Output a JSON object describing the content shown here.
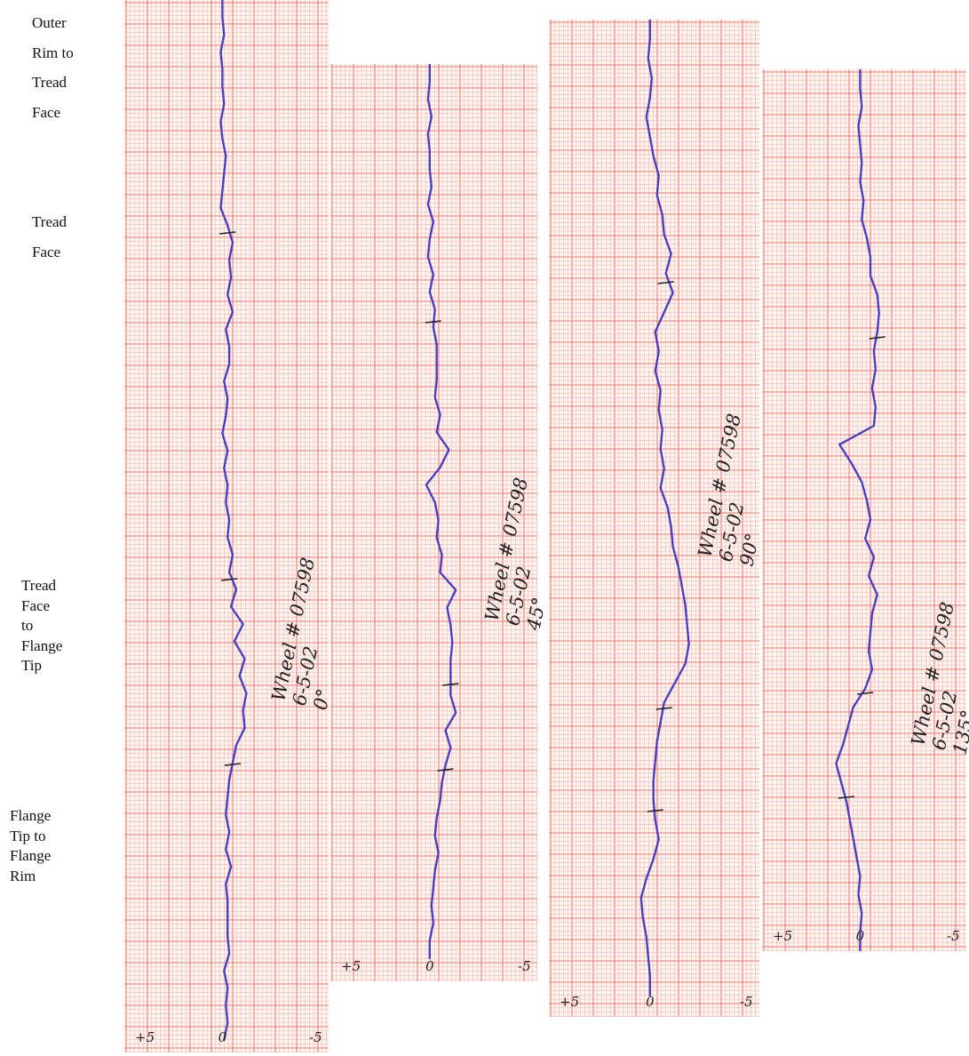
{
  "side_labels": [
    "Outer\nRim to\nTread\nFace",
    "Tread\nFace",
    "Tread\nFace\nto\nFlange\nTip",
    "Flange\nTip to\nFlange\nRim"
  ],
  "colors": {
    "paper": "#fff6f3",
    "grid_minor": "#f7b6ac",
    "grid_major": "#ea7a6e",
    "trace": "#4a3fc0",
    "ink": "#222222"
  },
  "chart_data": [
    {
      "type": "line",
      "annotation": [
        "Wheel # 07598",
        "6-5-02",
        "0°"
      ],
      "x_ticks": [
        "+5",
        "0",
        "-5"
      ],
      "xlim": [
        5,
        -5
      ],
      "series": [
        {
          "values": [
            0,
            0,
            -0.1,
            0.1,
            0,
            0,
            -0.1,
            0.1,
            0,
            -0.2,
            -0.1,
            0,
            0.1,
            -0.3,
            -0.6,
            -0.4,
            -0.5,
            -0.3,
            -0.6,
            -0.2,
            -0.4,
            -0.4,
            -0.1,
            -0.3,
            -0.2,
            0,
            -0.3,
            -0.1,
            -0.3,
            -0.2,
            -0.4,
            -0.3,
            -0.6,
            -0.4,
            -0.8,
            -0.5,
            -1.2,
            -0.7,
            -1.3,
            -1.0,
            -1.4,
            -1.2,
            -1.3,
            -0.8,
            -0.6,
            -0.4,
            -0.3,
            -0.2,
            -0.4,
            -0.2,
            -0.5,
            -0.2,
            -0.3,
            -0.3,
            -0.3,
            -0.4,
            -0.1,
            -0.3,
            -0.2,
            -0.3,
            -0.1
          ]
        }
      ]
    },
    {
      "type": "line",
      "annotation": [
        "Wheel # 07598",
        "6-5-02",
        "45°"
      ],
      "x_ticks": [
        "+5",
        "0",
        "-5"
      ],
      "xlim": [
        5,
        -5
      ],
      "series": [
        {
          "values": [
            0,
            0,
            0.1,
            -0.1,
            0.1,
            0,
            0,
            -0.1,
            0.1,
            -0.2,
            0,
            0.1,
            -0.2,
            0,
            -0.3,
            -0.2,
            -0.4,
            -0.4,
            -0.4,
            -0.3,
            -0.6,
            -0.4,
            -1.1,
            -0.6,
            0.2,
            -0.3,
            -0.5,
            -0.4,
            -0.7,
            -0.6,
            -1.5,
            -1.0,
            -1.2,
            -1.3,
            -1.2,
            -1.2,
            -1.2,
            -1.5,
            -0.9,
            -1.2,
            -0.9,
            -0.7,
            -0.6,
            -0.4,
            -0.3,
            -0.5,
            -0.3,
            -0.2,
            -0.1,
            -0.2,
            0,
            0
          ]
        }
      ]
    },
    {
      "type": "line",
      "annotation": [
        "Wheel # 07598",
        "6-5-02",
        "90°"
      ],
      "x_ticks": [
        "+5",
        "0",
        "-5"
      ],
      "xlim": [
        5,
        -5
      ],
      "series": [
        {
          "values": [
            0,
            0,
            0.1,
            -0.1,
            0,
            0.2,
            0,
            -0.2,
            -0.5,
            -0.4,
            -0.7,
            -0.8,
            -1.2,
            -0.9,
            -1.3,
            -0.8,
            -0.3,
            -0.5,
            -0.3,
            -0.6,
            -0.5,
            -0.7,
            -0.6,
            -0.8,
            -0.6,
            -1.0,
            -1.2,
            -1.3,
            -1.6,
            -1.8,
            -2.0,
            -2.1,
            -2.2,
            -2.0,
            -1.4,
            -0.8,
            -0.6,
            -0.4,
            -0.3,
            -0.2,
            -0.2,
            -0.3,
            -0.5,
            -0.2,
            0.2,
            0.5,
            0.4,
            0.2,
            0.1,
            0,
            0
          ]
        }
      ]
    },
    {
      "type": "line",
      "annotation": [
        "Wheel # 07598",
        "6-5-02",
        "135°"
      ],
      "x_ticks": [
        "+5",
        "0",
        "-5"
      ],
      "xlim": [
        5,
        -5
      ],
      "series": [
        {
          "values": [
            0,
            0,
            -0.1,
            0.1,
            0,
            -0.1,
            0,
            -0.2,
            -0.1,
            -0.4,
            -0.6,
            -0.6,
            -1.0,
            -1.1,
            -1.0,
            -0.8,
            -0.9,
            -0.7,
            -0.9,
            -0.8,
            1.2,
            0.5,
            -0.1,
            -0.4,
            -0.6,
            -0.3,
            -0.8,
            -0.5,
            -1.0,
            -0.7,
            -0.6,
            -0.5,
            -0.7,
            -0.3,
            0.4,
            0.7,
            1.0,
            1.4,
            1.1,
            0.8,
            0.6,
            0.4,
            0.2,
            0,
            0.1,
            -0.1,
            0,
            0
          ]
        }
      ]
    }
  ]
}
